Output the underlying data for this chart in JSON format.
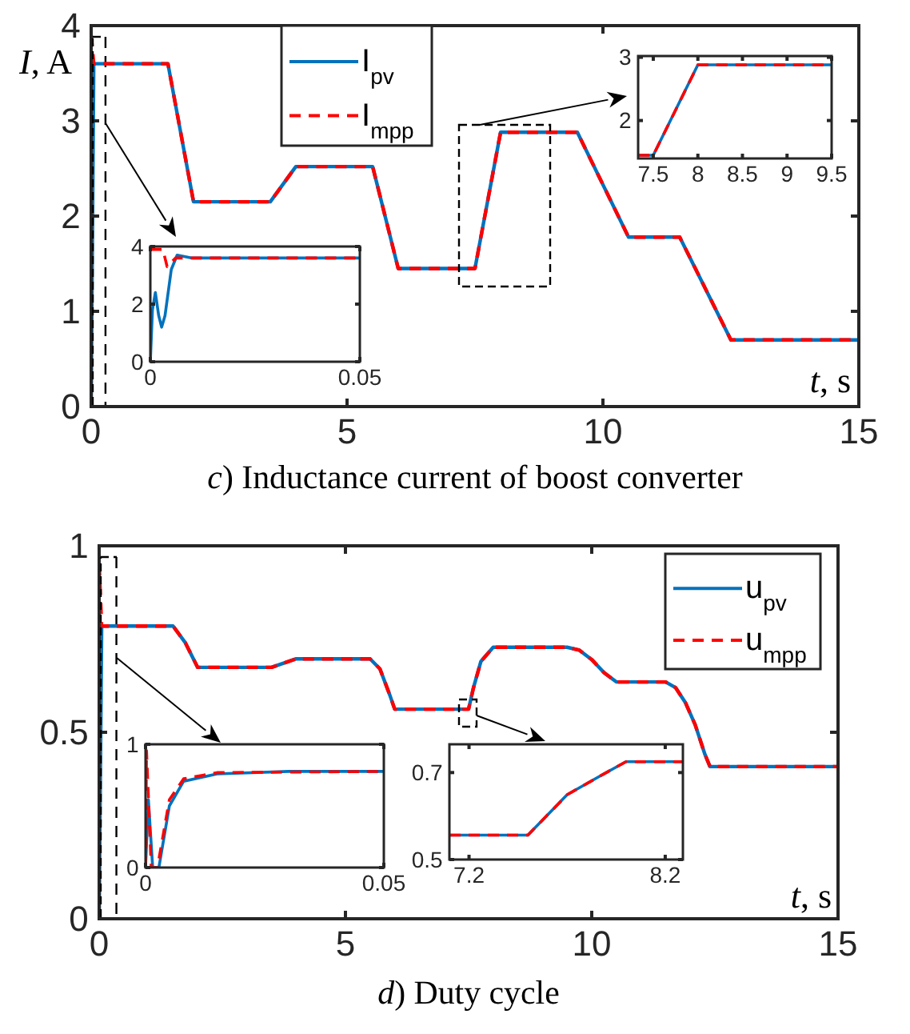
{
  "chart_data": [
    {
      "type": "line",
      "title": "c) Inductance current of boost converter",
      "xlabel": "t, s",
      "ylabel": "I, A",
      "xlim": [
        0,
        15
      ],
      "ylim": [
        0,
        4
      ],
      "xticks": [
        0,
        5,
        10,
        15
      ],
      "yticks": [
        0,
        1,
        2,
        3,
        4
      ],
      "grid": false,
      "legend": "top",
      "ref_lines": [
        {
          "axis": "x",
          "value": 0.28,
          "color": "#000000",
          "line_style": "dashed"
        }
      ],
      "series": [
        {
          "name": "I$_{pv}$",
          "color": "#0072bd",
          "line_style": "solid",
          "x": [
            0,
            0.05,
            1.5,
            2,
            3.5,
            4,
            5.5,
            6,
            7.5,
            8,
            9.5,
            10.5,
            11.5,
            12.5,
            15
          ],
          "values": [
            0,
            3.6,
            3.6,
            2.15,
            2.15,
            2.52,
            2.52,
            1.45,
            1.45,
            2.88,
            2.88,
            1.78,
            1.78,
            0.7,
            0.7
          ]
        },
        {
          "name": "I$_{mpp}$",
          "color": "#ff0000",
          "line_style": "dashed",
          "x": [
            0,
            0.05,
            1.5,
            2,
            3.5,
            4,
            5.5,
            6,
            7.5,
            8,
            9.5,
            10.5,
            11.5,
            12.5,
            15
          ],
          "values": [
            3.9,
            3.6,
            3.6,
            2.15,
            2.15,
            2.52,
            2.52,
            1.45,
            1.45,
            2.88,
            2.88,
            1.78,
            1.78,
            0.7,
            0.7
          ]
        }
      ]
    },
    {
      "type": "line",
      "xlim": [
        0,
        0.05
      ],
      "ylim": [
        0,
        4
      ],
      "xticks": [
        0,
        0.05
      ],
      "yticks": [
        0,
        2,
        4
      ],
      "grid": false,
      "legend": false,
      "series": [
        {
          "color": "#0072bd",
          "line_style": "solid",
          "x": [
            0,
            0.0005,
            0.0012,
            0.002,
            0.0027,
            0.0035,
            0.005,
            0.0064,
            0.01,
            0.05
          ],
          "values": [
            0,
            1.8,
            2.4,
            1.6,
            1.2,
            1.6,
            3.2,
            3.7,
            3.6,
            3.6
          ]
        },
        {
          "color": "#ff0000",
          "line_style": "dashed",
          "x": [
            0,
            0.003,
            0.004,
            0.006,
            0.05
          ],
          "values": [
            3.9,
            3.9,
            3.3,
            3.6,
            3.6
          ]
        }
      ]
    },
    {
      "type": "line",
      "xlim": [
        7.33,
        9.5
      ],
      "ylim": [
        1.4,
        3.02
      ],
      "xticks": [
        7.5,
        8,
        8.5,
        9,
        9.5
      ],
      "yticks": [
        2,
        3
      ],
      "grid": false,
      "legend": false,
      "series": [
        {
          "color": "#0072bd",
          "line_style": "solid",
          "x": [
            7.33,
            7.5,
            8,
            9.5
          ],
          "values": [
            1.45,
            1.45,
            2.88,
            2.88
          ]
        },
        {
          "color": "#ff0000",
          "line_style": "dashed",
          "x": [
            7.33,
            7.5,
            8,
            9.5
          ],
          "values": [
            1.45,
            1.45,
            2.88,
            2.88
          ]
        }
      ]
    },
    {
      "type": "line",
      "title": "d) Duty cycle",
      "xlabel": "t, s",
      "xlim": [
        0,
        15
      ],
      "ylim": [
        0,
        1
      ],
      "xticks": [
        0,
        5,
        10,
        15
      ],
      "yticks": [
        0,
        0.5,
        1
      ],
      "grid": false,
      "legend": "top right",
      "ref_lines": [
        {
          "axis": "x",
          "value": 0.35,
          "color": "#000000",
          "line_style": "dashed"
        }
      ],
      "series": [
        {
          "name": "u$_{pv}$",
          "color": "#0072bd",
          "line_style": "solid",
          "x": [
            0,
            0.05,
            1.5,
            1.75,
            2,
            3.5,
            4,
            5.5,
            5.7,
            5.9,
            6,
            7.5,
            7.6,
            7.75,
            8,
            9.5,
            9.75,
            10,
            10.25,
            10.5,
            11.5,
            11.7,
            11.9,
            12.1,
            12.3,
            12.4,
            15
          ],
          "values": [
            0,
            0.785,
            0.785,
            0.74,
            0.674,
            0.674,
            0.697,
            0.697,
            0.67,
            0.6,
            0.562,
            0.562,
            0.62,
            0.69,
            0.728,
            0.728,
            0.72,
            0.695,
            0.66,
            0.635,
            0.635,
            0.62,
            0.58,
            0.52,
            0.44,
            0.408,
            0.408
          ]
        },
        {
          "name": "u$_{mpp}$",
          "color": "#ff0000",
          "line_style": "dashed",
          "x": [
            0,
            0.05,
            1.5,
            1.75,
            2,
            3.5,
            4,
            5.5,
            5.7,
            5.9,
            6,
            7.5,
            7.6,
            7.75,
            8,
            9.5,
            9.75,
            10,
            10.25,
            10.5,
            11.5,
            11.7,
            11.9,
            12.1,
            12.3,
            12.4,
            15
          ],
          "values": [
            0.95,
            0.785,
            0.785,
            0.74,
            0.674,
            0.674,
            0.697,
            0.697,
            0.67,
            0.6,
            0.562,
            0.562,
            0.62,
            0.69,
            0.728,
            0.728,
            0.72,
            0.695,
            0.66,
            0.635,
            0.635,
            0.62,
            0.58,
            0.52,
            0.44,
            0.408,
            0.408
          ]
        }
      ]
    },
    {
      "type": "line",
      "xlim": [
        0,
        0.05
      ],
      "ylim": [
        0,
        1
      ],
      "xticks": [
        0,
        0.05
      ],
      "yticks": [
        0,
        1
      ],
      "grid": false,
      "legend": false,
      "series": [
        {
          "color": "#0072bd",
          "line_style": "solid",
          "x": [
            0,
            0.0006,
            0.0015,
            0.0028,
            0.005,
            0.008,
            0.015,
            0.03,
            0.05
          ],
          "values": [
            0,
            0.55,
            0,
            0,
            0.5,
            0.7,
            0.76,
            0.78,
            0.78
          ]
        },
        {
          "color": "#ff0000",
          "line_style": "dashed",
          "x": [
            0,
            0.0002,
            0.0012,
            0.0025,
            0.005,
            0.008,
            0.015,
            0.05
          ],
          "values": [
            0,
            0.95,
            0,
            0,
            0.55,
            0.72,
            0.77,
            0.78
          ]
        }
      ]
    },
    {
      "type": "line",
      "xlim": [
        7.1,
        8.29
      ],
      "ylim": [
        0.5,
        0.765
      ],
      "xticks": [
        7.2,
        8.2
      ],
      "yticks": [
        0.5,
        0.7
      ],
      "grid": false,
      "legend": false,
      "series": [
        {
          "color": "#0072bd",
          "line_style": "solid",
          "x": [
            7.1,
            7.5,
            7.7,
            7.86,
            8,
            8.29
          ],
          "values": [
            0.556,
            0.556,
            0.649,
            0.69,
            0.725,
            0.725
          ]
        },
        {
          "color": "#ff0000",
          "line_style": "dashed",
          "x": [
            7.1,
            7.5,
            7.7,
            7.86,
            8,
            8.29
          ],
          "values": [
            0.556,
            0.556,
            0.649,
            0.69,
            0.725,
            0.725
          ]
        }
      ]
    }
  ]
}
